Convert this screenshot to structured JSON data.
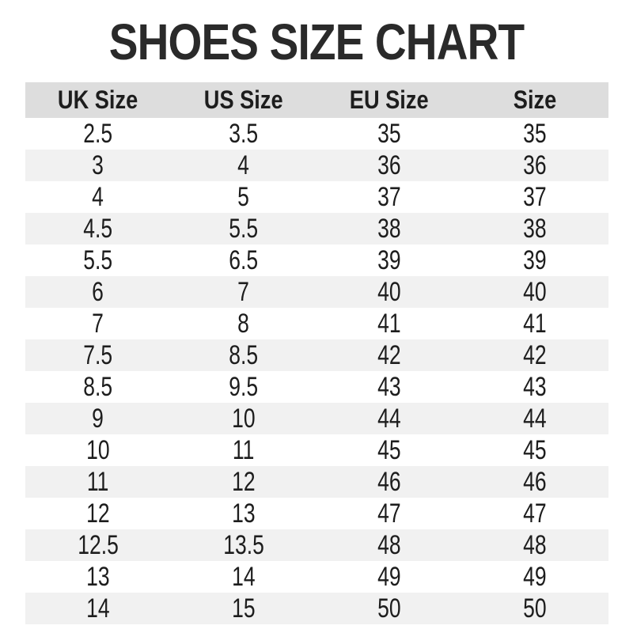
{
  "title": "SHOES SIZE CHART",
  "chart_data": {
    "type": "table",
    "title": "SHOES SIZE CHART",
    "columns": [
      "UK Size",
      "US Size",
      "EU Size",
      "Size"
    ],
    "rows": [
      [
        "2.5",
        "3.5",
        "35",
        "35"
      ],
      [
        "3",
        "4",
        "36",
        "36"
      ],
      [
        "4",
        "5",
        "37",
        "37"
      ],
      [
        "4.5",
        "5.5",
        "38",
        "38"
      ],
      [
        "5.5",
        "6.5",
        "39",
        "39"
      ],
      [
        "6",
        "7",
        "40",
        "40"
      ],
      [
        "7",
        "8",
        "41",
        "41"
      ],
      [
        "7.5",
        "8.5",
        "42",
        "42"
      ],
      [
        "8.5",
        "9.5",
        "43",
        "43"
      ],
      [
        "9",
        "10",
        "44",
        "44"
      ],
      [
        "10",
        "11",
        "45",
        "45"
      ],
      [
        "11",
        "12",
        "46",
        "46"
      ],
      [
        "12",
        "13",
        "47",
        "47"
      ],
      [
        "12.5",
        "13.5",
        "48",
        "48"
      ],
      [
        "13",
        "14",
        "49",
        "49"
      ],
      [
        "14",
        "15",
        "50",
        "50"
      ]
    ]
  },
  "colors": {
    "title_color": "#2a2a2a",
    "text_color": "#1d1d1d",
    "header_bg": "#dddddd",
    "row_alt_bg": "#f1f1f1",
    "page_bg": "#ffffff"
  }
}
